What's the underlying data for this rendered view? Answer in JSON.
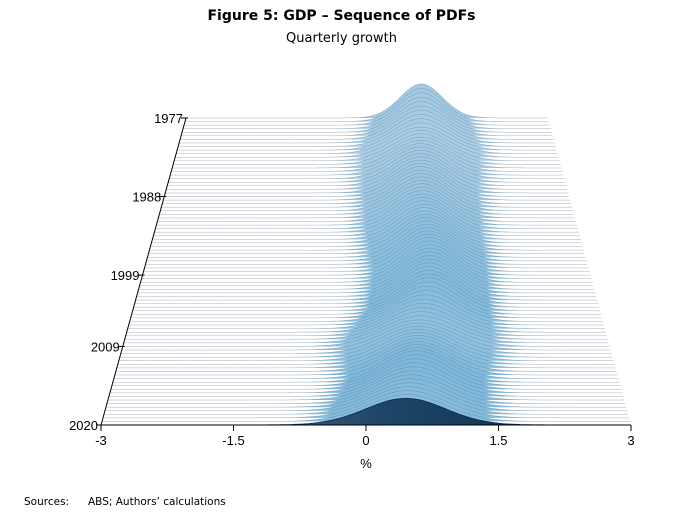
{
  "title": "Figure 5: GDP – Sequence of PDFs",
  "subtitle": "Quarterly growth",
  "source_label": "Sources:",
  "source_text": "ABS; Authors’ calculations",
  "chart_data": {
    "type": "area",
    "title": "Figure 5: GDP – Sequence of PDFs",
    "subtitle": "Quarterly growth",
    "xlabel": "%",
    "xlim": [
      -3,
      3
    ],
    "x_ticks": [
      -3,
      -1.5,
      0,
      1.5,
      3
    ],
    "x_tick_labels": [
      "-3",
      "-1.5",
      "0",
      "1.5",
      "3"
    ],
    "year_range": [
      1977,
      2020
    ],
    "year_ticks": [
      1977,
      1988,
      1999,
      2009,
      2020
    ],
    "year_tick_labels": [
      "1977",
      "1988",
      "1999",
      "2009",
      "2020"
    ],
    "density_series": [
      {
        "year": 1977,
        "mode": 0.9,
        "spread": 0.35
      },
      {
        "year": 1982,
        "mode": 0.85,
        "spread": 0.45
      },
      {
        "year": 1988,
        "mode": 0.8,
        "spread": 0.4
      },
      {
        "year": 1993,
        "mode": 0.8,
        "spread": 0.38
      },
      {
        "year": 1999,
        "mode": 0.85,
        "spread": 0.35
      },
      {
        "year": 2004,
        "mode": 0.8,
        "spread": 0.36
      },
      {
        "year": 2009,
        "mode": 0.65,
        "spread": 0.45
      },
      {
        "year": 2014,
        "mode": 0.6,
        "spread": 0.38
      },
      {
        "year": 2020,
        "mode": 0.45,
        "spread": 0.45
      }
    ],
    "grid": false,
    "colors": {
      "base": "#dfe6f1",
      "peak": "#6fb2d8",
      "latest": "#0e3250",
      "ridge_line": "#5f6f86"
    }
  }
}
